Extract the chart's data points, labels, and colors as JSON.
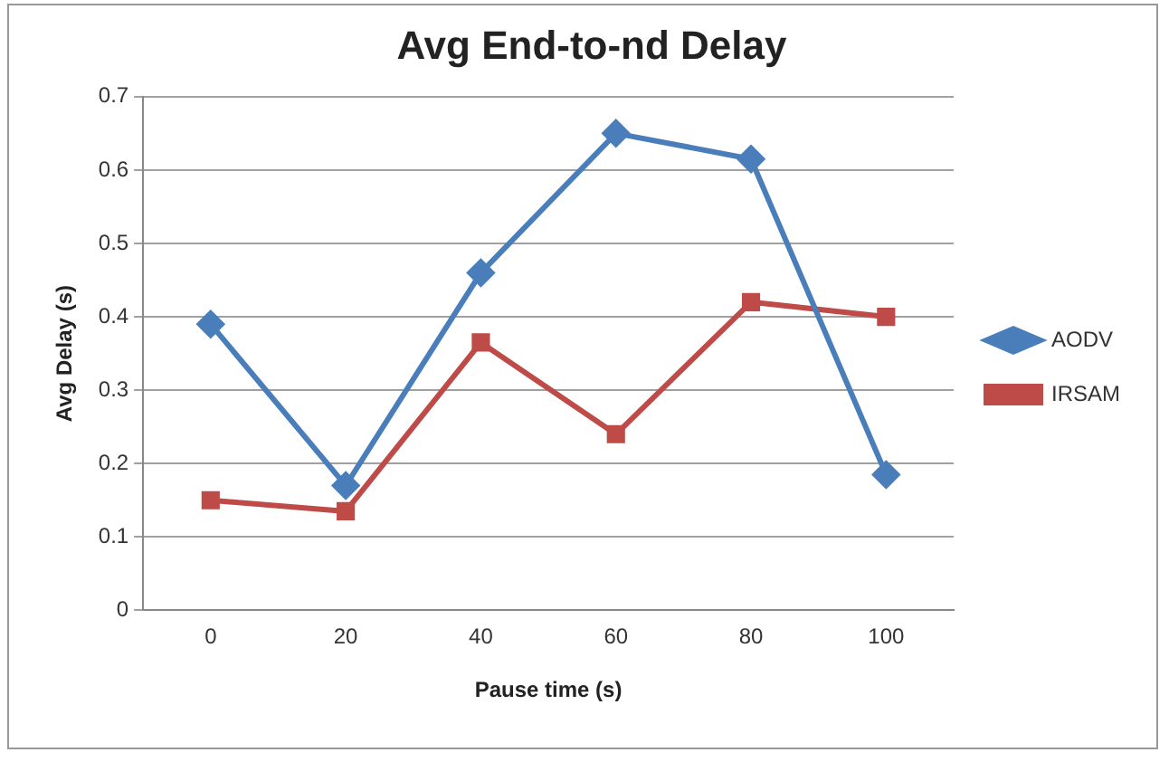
{
  "chart_data": {
    "type": "line",
    "title": "Avg End-to-nd Delay",
    "xlabel": "Pause time (s)",
    "ylabel": "Avg Delay (s)",
    "categories": [
      "0",
      "20",
      "40",
      "60",
      "80",
      "100"
    ],
    "series": [
      {
        "name": "AODV",
        "color": "#4a7ebb",
        "marker": "diamond",
        "values": [
          0.39,
          0.17,
          0.46,
          0.65,
          0.615,
          0.185
        ]
      },
      {
        "name": "IRSAM",
        "color": "#be4b48",
        "marker": "square",
        "values": [
          0.15,
          0.135,
          0.365,
          0.24,
          0.42,
          0.4
        ]
      }
    ],
    "ylim": [
      0,
      0.7
    ],
    "yticks": [
      0,
      0.1,
      0.2,
      0.3,
      0.4,
      0.5,
      0.6,
      0.7
    ],
    "grid": "y",
    "legend": "right",
    "line_style": "solid"
  }
}
